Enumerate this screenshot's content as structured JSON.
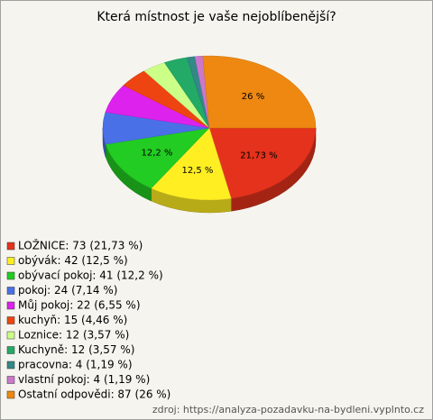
{
  "chart_data": {
    "type": "pie",
    "title": "Která místnost je vaše nejoblíbenější?",
    "labels": [
      "LOŽNICE: 73 (21,73 %)",
      "obývák: 42 (12,5 %)",
      "obývací pokoj: 41 (12,2 %)",
      "pokoj: 24 (7,14 %)",
      "Můj pokoj: 22 (6,55 %)",
      "kuchyň: 15 (4,46 %)",
      "Loznice: 12 (3,57 %)",
      "Kuchyně: 12 (3,57 %)",
      "pracovna: 4 (1,19 %)",
      "vlastní pokoj: 4 (1,19 %)",
      "Ostatní odpovědi: 87 (26 %)"
    ],
    "values": [
      21.73,
      12.5,
      12.2,
      7.14,
      6.55,
      4.46,
      3.57,
      3.57,
      1.19,
      1.19,
      26
    ],
    "value_labels": [
      "21,73 %",
      "12,5 %",
      "12,2 %",
      null,
      null,
      null,
      null,
      null,
      null,
      null,
      "26 %"
    ],
    "colors": [
      "#e4321c",
      "#ffee22",
      "#22cc22",
      "#4a70e8",
      "#dd22ee",
      "#ee4411",
      "#ccff88",
      "#22aa66",
      "#338888",
      "#cc77cc",
      "#ee8811"
    ],
    "source": "zdroj: https://analyza-pozadavku-na-bydleni.vyplnto.cz"
  }
}
